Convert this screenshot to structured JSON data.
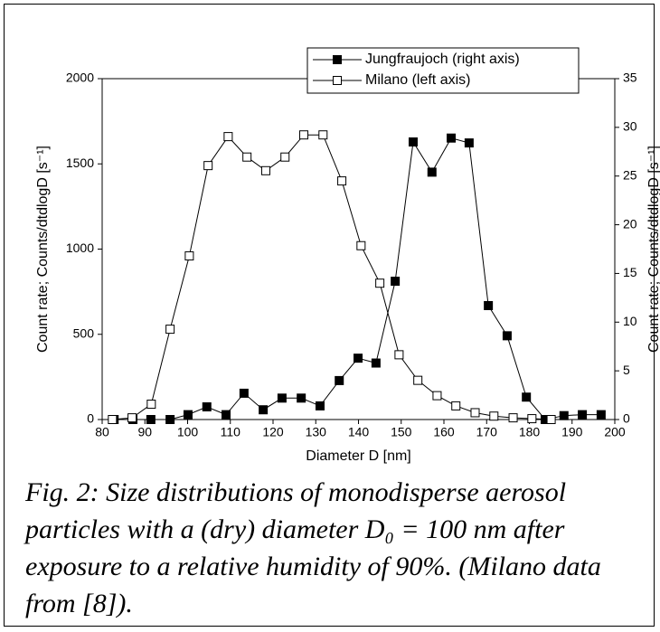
{
  "chart_data": {
    "type": "line",
    "xlabel": "Diameter D [nm]",
    "ylabel": "Count rate; Counts/dtdlogD [s⁻¹]",
    "y2label": "Count rate; Counts/dtdlogD [s⁻¹]",
    "xlim": [
      80,
      200
    ],
    "xticks": [
      80,
      90,
      100,
      110,
      120,
      130,
      140,
      150,
      160,
      170,
      180,
      190,
      200
    ],
    "ylim": [
      0,
      2000
    ],
    "yticks": [
      0,
      500,
      1000,
      1500,
      2000
    ],
    "y2lim": [
      0,
      35
    ],
    "y2ticks": [
      0,
      5,
      10,
      15,
      20,
      25,
      30,
      35
    ],
    "legend": "upper right",
    "series": [
      {
        "name": "Jungfraujoch (right axis)",
        "color": "#000000",
        "marker": "filled-square",
        "axis": "y2",
        "x": [
          82.8,
          87.2,
          91.4,
          95.9,
          100.1,
          104.5,
          109.0,
          113.2,
          117.7,
          122.1,
          126.6,
          131.0,
          135.5,
          139.9,
          144.1,
          148.6,
          152.8,
          157.2,
          161.7,
          165.9,
          170.4,
          174.8,
          179.3,
          183.7,
          188.1,
          192.4,
          196.8
        ],
        "values": [
          0,
          0,
          0,
          0,
          0.5,
          1.3,
          0.5,
          2.7,
          1.0,
          2.2,
          2.2,
          1.4,
          4.0,
          6.3,
          5.8,
          14.2,
          28.5,
          25.4,
          28.9,
          28.4,
          11.7,
          8.6,
          2.3,
          0,
          0.4,
          0.5,
          0.5
        ]
      },
      {
        "name": "Milano (left axis)",
        "color": "#000000",
        "marker": "open-square",
        "x": [
          82.4,
          87.0,
          91.5,
          95.9,
          100.4,
          104.8,
          109.5,
          113.9,
          118.3,
          122.8,
          127.2,
          131.7,
          136.1,
          140.6,
          145.0,
          149.5,
          153.9,
          158.4,
          162.8,
          167.3,
          171.7,
          176.2,
          180.6,
          185.1
        ],
        "values": [
          0,
          10,
          90,
          530,
          960,
          1490,
          1660,
          1540,
          1460,
          1540,
          1670,
          1670,
          1400,
          1020,
          800,
          380,
          230,
          140,
          80,
          40,
          20,
          10,
          5,
          0
        ]
      }
    ]
  },
  "caption": "Fig. 2: Size distributions of monodisperse aerosol particles with a (dry) diameter D₀ = 100 nm after exposure to a relative humidity of 90%. (Milano data from [8])."
}
